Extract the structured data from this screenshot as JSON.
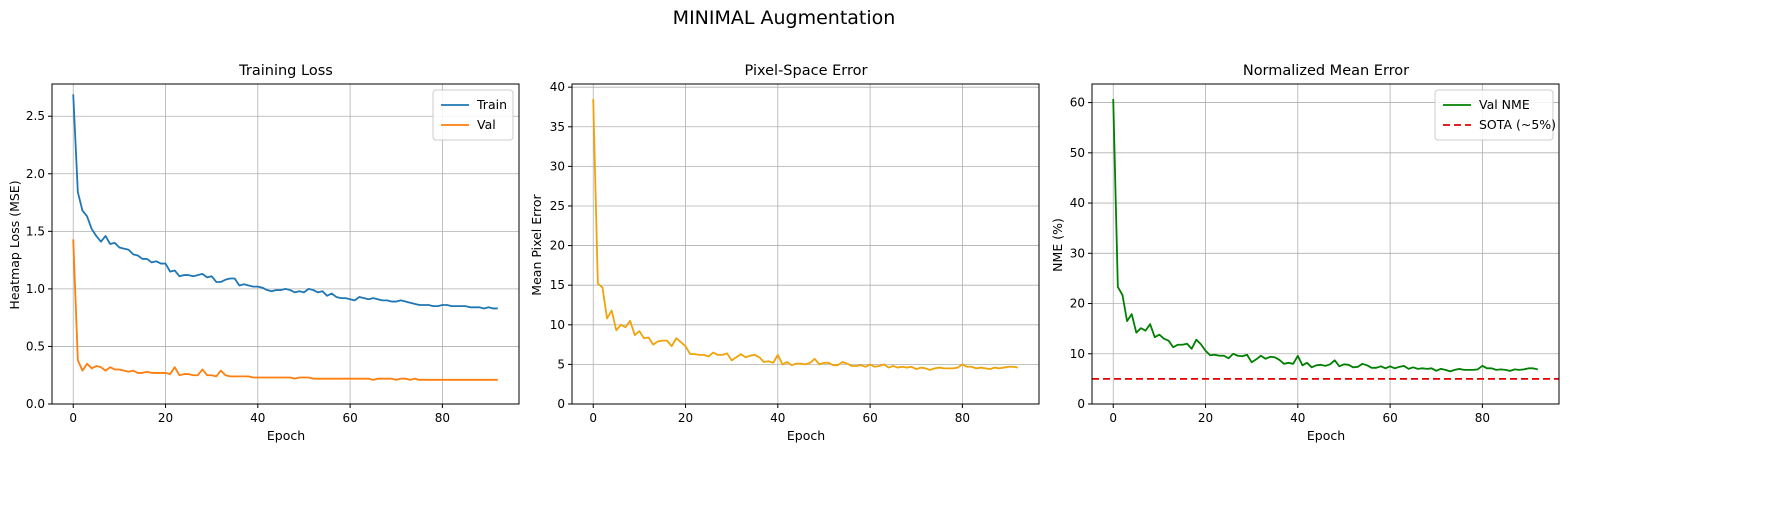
{
  "suptitle": "MINIMAL Augmentation",
  "chart_data": [
    {
      "type": "line",
      "title": "Training Loss",
      "xlabel": "Epoch",
      "ylabel": "Heatmap Loss (MSE)",
      "xlim": [
        -4.6,
        96.6
      ],
      "ylim": [
        0,
        2.78
      ],
      "xticks": [
        0,
        20,
        40,
        60,
        80
      ],
      "xtick_labels": [
        "0",
        "20",
        "40",
        "60",
        "80"
      ],
      "yticks": [
        0,
        0.5,
        1.0,
        1.5,
        2.0,
        2.5
      ],
      "ytick_labels": [
        "0.0",
        "0.5",
        "1.0",
        "1.5",
        "2.0",
        "2.5"
      ],
      "grid": true,
      "legend_position": "top-right",
      "series": [
        {
          "name": "Train",
          "color": "#1f77b4",
          "dash": "solid",
          "x": [
            0,
            1,
            2,
            3,
            4,
            5,
            6,
            7,
            8,
            9,
            10,
            11,
            12,
            13,
            14,
            15,
            16,
            17,
            18,
            19,
            20,
            21,
            22,
            23,
            24,
            25,
            26,
            27,
            28,
            29,
            30,
            31,
            32,
            33,
            34,
            35,
            36,
            37,
            38,
            39,
            40,
            41,
            42,
            43,
            44,
            45,
            46,
            47,
            48,
            49,
            50,
            51,
            52,
            53,
            54,
            55,
            56,
            57,
            58,
            59,
            60,
            61,
            62,
            63,
            64,
            65,
            66,
            67,
            68,
            69,
            70,
            71,
            72,
            73,
            74,
            75,
            76,
            77,
            78,
            79,
            80,
            81,
            82,
            83,
            84,
            85,
            86,
            87,
            88,
            89,
            90,
            91,
            92
          ],
          "y": [
            2.69,
            1.84,
            1.68,
            1.63,
            1.52,
            1.46,
            1.41,
            1.46,
            1.39,
            1.4,
            1.36,
            1.35,
            1.34,
            1.3,
            1.29,
            1.26,
            1.26,
            1.23,
            1.24,
            1.22,
            1.22,
            1.15,
            1.16,
            1.11,
            1.12,
            1.12,
            1.11,
            1.12,
            1.13,
            1.1,
            1.11,
            1.06,
            1.06,
            1.08,
            1.09,
            1.09,
            1.03,
            1.04,
            1.03,
            1.02,
            1.02,
            1.01,
            0.99,
            0.98,
            0.99,
            0.99,
            1.0,
            0.99,
            0.97,
            0.98,
            0.97,
            1.0,
            0.99,
            0.97,
            0.98,
            0.94,
            0.96,
            0.93,
            0.92,
            0.92,
            0.91,
            0.9,
            0.93,
            0.92,
            0.91,
            0.92,
            0.91,
            0.9,
            0.9,
            0.89,
            0.89,
            0.9,
            0.89,
            0.88,
            0.87,
            0.86,
            0.86,
            0.86,
            0.85,
            0.85,
            0.86,
            0.86,
            0.85,
            0.85,
            0.85,
            0.85,
            0.84,
            0.84,
            0.84,
            0.83,
            0.84,
            0.83,
            0.83
          ]
        },
        {
          "name": "Val",
          "color": "#ff7f0e",
          "dash": "solid",
          "x": [
            0,
            1,
            2,
            3,
            4,
            5,
            6,
            7,
            8,
            9,
            10,
            11,
            12,
            13,
            14,
            15,
            16,
            17,
            18,
            19,
            20,
            21,
            22,
            23,
            24,
            25,
            26,
            27,
            28,
            29,
            30,
            31,
            32,
            33,
            34,
            35,
            36,
            37,
            38,
            39,
            40,
            41,
            42,
            43,
            44,
            45,
            46,
            47,
            48,
            49,
            50,
            51,
            52,
            53,
            54,
            55,
            56,
            57,
            58,
            59,
            60,
            61,
            62,
            63,
            64,
            65,
            66,
            67,
            68,
            69,
            70,
            71,
            72,
            73,
            74,
            75,
            76,
            77,
            78,
            79,
            80,
            81,
            82,
            83,
            84,
            85,
            86,
            87,
            88,
            89,
            90,
            91,
            92
          ],
          "y": [
            1.43,
            0.38,
            0.29,
            0.35,
            0.31,
            0.33,
            0.32,
            0.29,
            0.32,
            0.3,
            0.3,
            0.29,
            0.28,
            0.29,
            0.27,
            0.27,
            0.28,
            0.27,
            0.27,
            0.27,
            0.27,
            0.26,
            0.32,
            0.25,
            0.26,
            0.26,
            0.25,
            0.25,
            0.3,
            0.25,
            0.25,
            0.24,
            0.29,
            0.25,
            0.24,
            0.24,
            0.24,
            0.24,
            0.24,
            0.23,
            0.23,
            0.23,
            0.23,
            0.23,
            0.23,
            0.23,
            0.23,
            0.23,
            0.22,
            0.23,
            0.23,
            0.23,
            0.22,
            0.22,
            0.22,
            0.22,
            0.22,
            0.22,
            0.22,
            0.22,
            0.22,
            0.22,
            0.22,
            0.22,
            0.22,
            0.21,
            0.22,
            0.22,
            0.22,
            0.22,
            0.21,
            0.22,
            0.22,
            0.21,
            0.22,
            0.21,
            0.21,
            0.21,
            0.21,
            0.21,
            0.21,
            0.21,
            0.21,
            0.21,
            0.21,
            0.21,
            0.21,
            0.21,
            0.21,
            0.21,
            0.21,
            0.21,
            0.21
          ]
        }
      ]
    },
    {
      "type": "line",
      "title": "Pixel-Space Error",
      "xlabel": "Epoch",
      "ylabel": "Mean Pixel Error",
      "xlim": [
        -4.6,
        96.6
      ],
      "ylim": [
        0,
        40.4
      ],
      "xticks": [
        0,
        20,
        40,
        60,
        80
      ],
      "xtick_labels": [
        "0",
        "20",
        "40",
        "60",
        "80"
      ],
      "yticks": [
        0,
        5,
        10,
        15,
        20,
        25,
        30,
        35,
        40
      ],
      "ytick_labels": [
        "0",
        "5",
        "10",
        "15",
        "20",
        "25",
        "30",
        "35",
        "40"
      ],
      "grid": true,
      "legend_position": "none",
      "series": [
        {
          "color": "#f0a30a",
          "dash": "solid",
          "x": [
            0,
            1,
            2,
            3,
            4,
            5,
            6,
            7,
            8,
            9,
            10,
            11,
            12,
            13,
            14,
            15,
            16,
            17,
            18,
            19,
            20,
            21,
            22,
            23,
            24,
            25,
            26,
            27,
            28,
            29,
            30,
            31,
            32,
            33,
            34,
            35,
            36,
            37,
            38,
            39,
            40,
            41,
            42,
            43,
            44,
            45,
            46,
            47,
            48,
            49,
            50,
            51,
            52,
            53,
            54,
            55,
            56,
            57,
            58,
            59,
            60,
            61,
            62,
            63,
            64,
            65,
            66,
            67,
            68,
            69,
            70,
            71,
            72,
            73,
            74,
            75,
            76,
            77,
            78,
            79,
            80,
            81,
            82,
            83,
            84,
            85,
            86,
            87,
            88,
            89,
            90,
            91,
            92
          ],
          "y": [
            38.5,
            15.2,
            14.7,
            10.8,
            11.8,
            9.3,
            10.0,
            9.7,
            10.5,
            8.7,
            9.2,
            8.3,
            8.4,
            7.5,
            7.9,
            8.0,
            8.0,
            7.3,
            8.3,
            7.8,
            7.3,
            6.3,
            6.3,
            6.2,
            6.2,
            6.0,
            6.5,
            6.2,
            6.2,
            6.4,
            5.5,
            5.9,
            6.3,
            5.9,
            6.1,
            6.2,
            5.9,
            5.3,
            5.4,
            5.2,
            6.2,
            5.0,
            5.3,
            4.9,
            5.1,
            5.1,
            5.0,
            5.2,
            5.7,
            5.0,
            5.2,
            5.2,
            4.9,
            4.9,
            5.3,
            5.1,
            4.8,
            4.8,
            4.9,
            4.7,
            5.0,
            4.7,
            4.8,
            5.0,
            4.6,
            4.8,
            4.6,
            4.7,
            4.6,
            4.7,
            4.4,
            4.6,
            4.5,
            4.3,
            4.5,
            4.6,
            4.5,
            4.5,
            4.5,
            4.6,
            5.0,
            4.7,
            4.7,
            4.5,
            4.6,
            4.5,
            4.4,
            4.6,
            4.5,
            4.6,
            4.7,
            4.7,
            4.6
          ]
        }
      ]
    },
    {
      "type": "line",
      "title": "Normalized Mean Error",
      "xlabel": "Epoch",
      "ylabel": "NME (%)",
      "xlim": [
        -4.6,
        96.6
      ],
      "ylim": [
        0,
        63.7
      ],
      "xticks": [
        0,
        20,
        40,
        60,
        80
      ],
      "xtick_labels": [
        "0",
        "20",
        "40",
        "60",
        "80"
      ],
      "yticks": [
        0,
        10,
        20,
        30,
        40,
        50,
        60
      ],
      "ytick_labels": [
        "0",
        "10",
        "20",
        "30",
        "40",
        "50",
        "60"
      ],
      "grid": true,
      "legend_position": "top-right",
      "series": [
        {
          "name": "Val NME",
          "color": "#008000",
          "dash": "solid",
          "x": [
            0,
            1,
            2,
            3,
            4,
            5,
            6,
            7,
            8,
            9,
            10,
            11,
            12,
            13,
            14,
            15,
            16,
            17,
            18,
            19,
            20,
            21,
            22,
            23,
            24,
            25,
            26,
            27,
            28,
            29,
            30,
            31,
            32,
            33,
            34,
            35,
            36,
            37,
            38,
            39,
            40,
            41,
            42,
            43,
            44,
            45,
            46,
            47,
            48,
            49,
            50,
            51,
            52,
            53,
            54,
            55,
            56,
            57,
            58,
            59,
            60,
            61,
            62,
            63,
            64,
            65,
            66,
            67,
            68,
            69,
            70,
            71,
            72,
            73,
            74,
            75,
            76,
            77,
            78,
            79,
            80,
            81,
            82,
            83,
            84,
            85,
            86,
            87,
            88,
            89,
            90,
            91,
            92
          ],
          "y": [
            60.7,
            23.3,
            21.7,
            16.5,
            17.9,
            14.2,
            15.1,
            14.6,
            15.9,
            13.3,
            13.8,
            13.0,
            12.6,
            11.3,
            11.8,
            11.8,
            12.0,
            11.0,
            12.8,
            11.9,
            10.6,
            9.7,
            9.8,
            9.6,
            9.6,
            9.1,
            10.0,
            9.6,
            9.5,
            9.8,
            8.3,
            8.9,
            9.6,
            9.0,
            9.4,
            9.3,
            8.8,
            8.0,
            8.2,
            8.0,
            9.6,
            7.7,
            8.2,
            7.3,
            7.7,
            7.8,
            7.6,
            7.9,
            8.7,
            7.5,
            7.9,
            7.8,
            7.3,
            7.4,
            8.0,
            7.7,
            7.2,
            7.2,
            7.5,
            7.1,
            7.5,
            7.1,
            7.4,
            7.6,
            7.0,
            7.3,
            7.0,
            7.1,
            7.0,
            7.1,
            6.6,
            7.0,
            6.8,
            6.5,
            6.8,
            7.0,
            6.8,
            6.8,
            6.8,
            6.9,
            7.6,
            7.1,
            7.1,
            6.8,
            6.9,
            6.8,
            6.6,
            6.9,
            6.8,
            6.9,
            7.1,
            7.1,
            6.9
          ]
        },
        {
          "name": "SOTA (~5%)",
          "color": "#e00000",
          "dash": "dashed",
          "x": [
            -4.6,
            96.6
          ],
          "y": [
            5,
            5
          ]
        }
      ]
    }
  ]
}
